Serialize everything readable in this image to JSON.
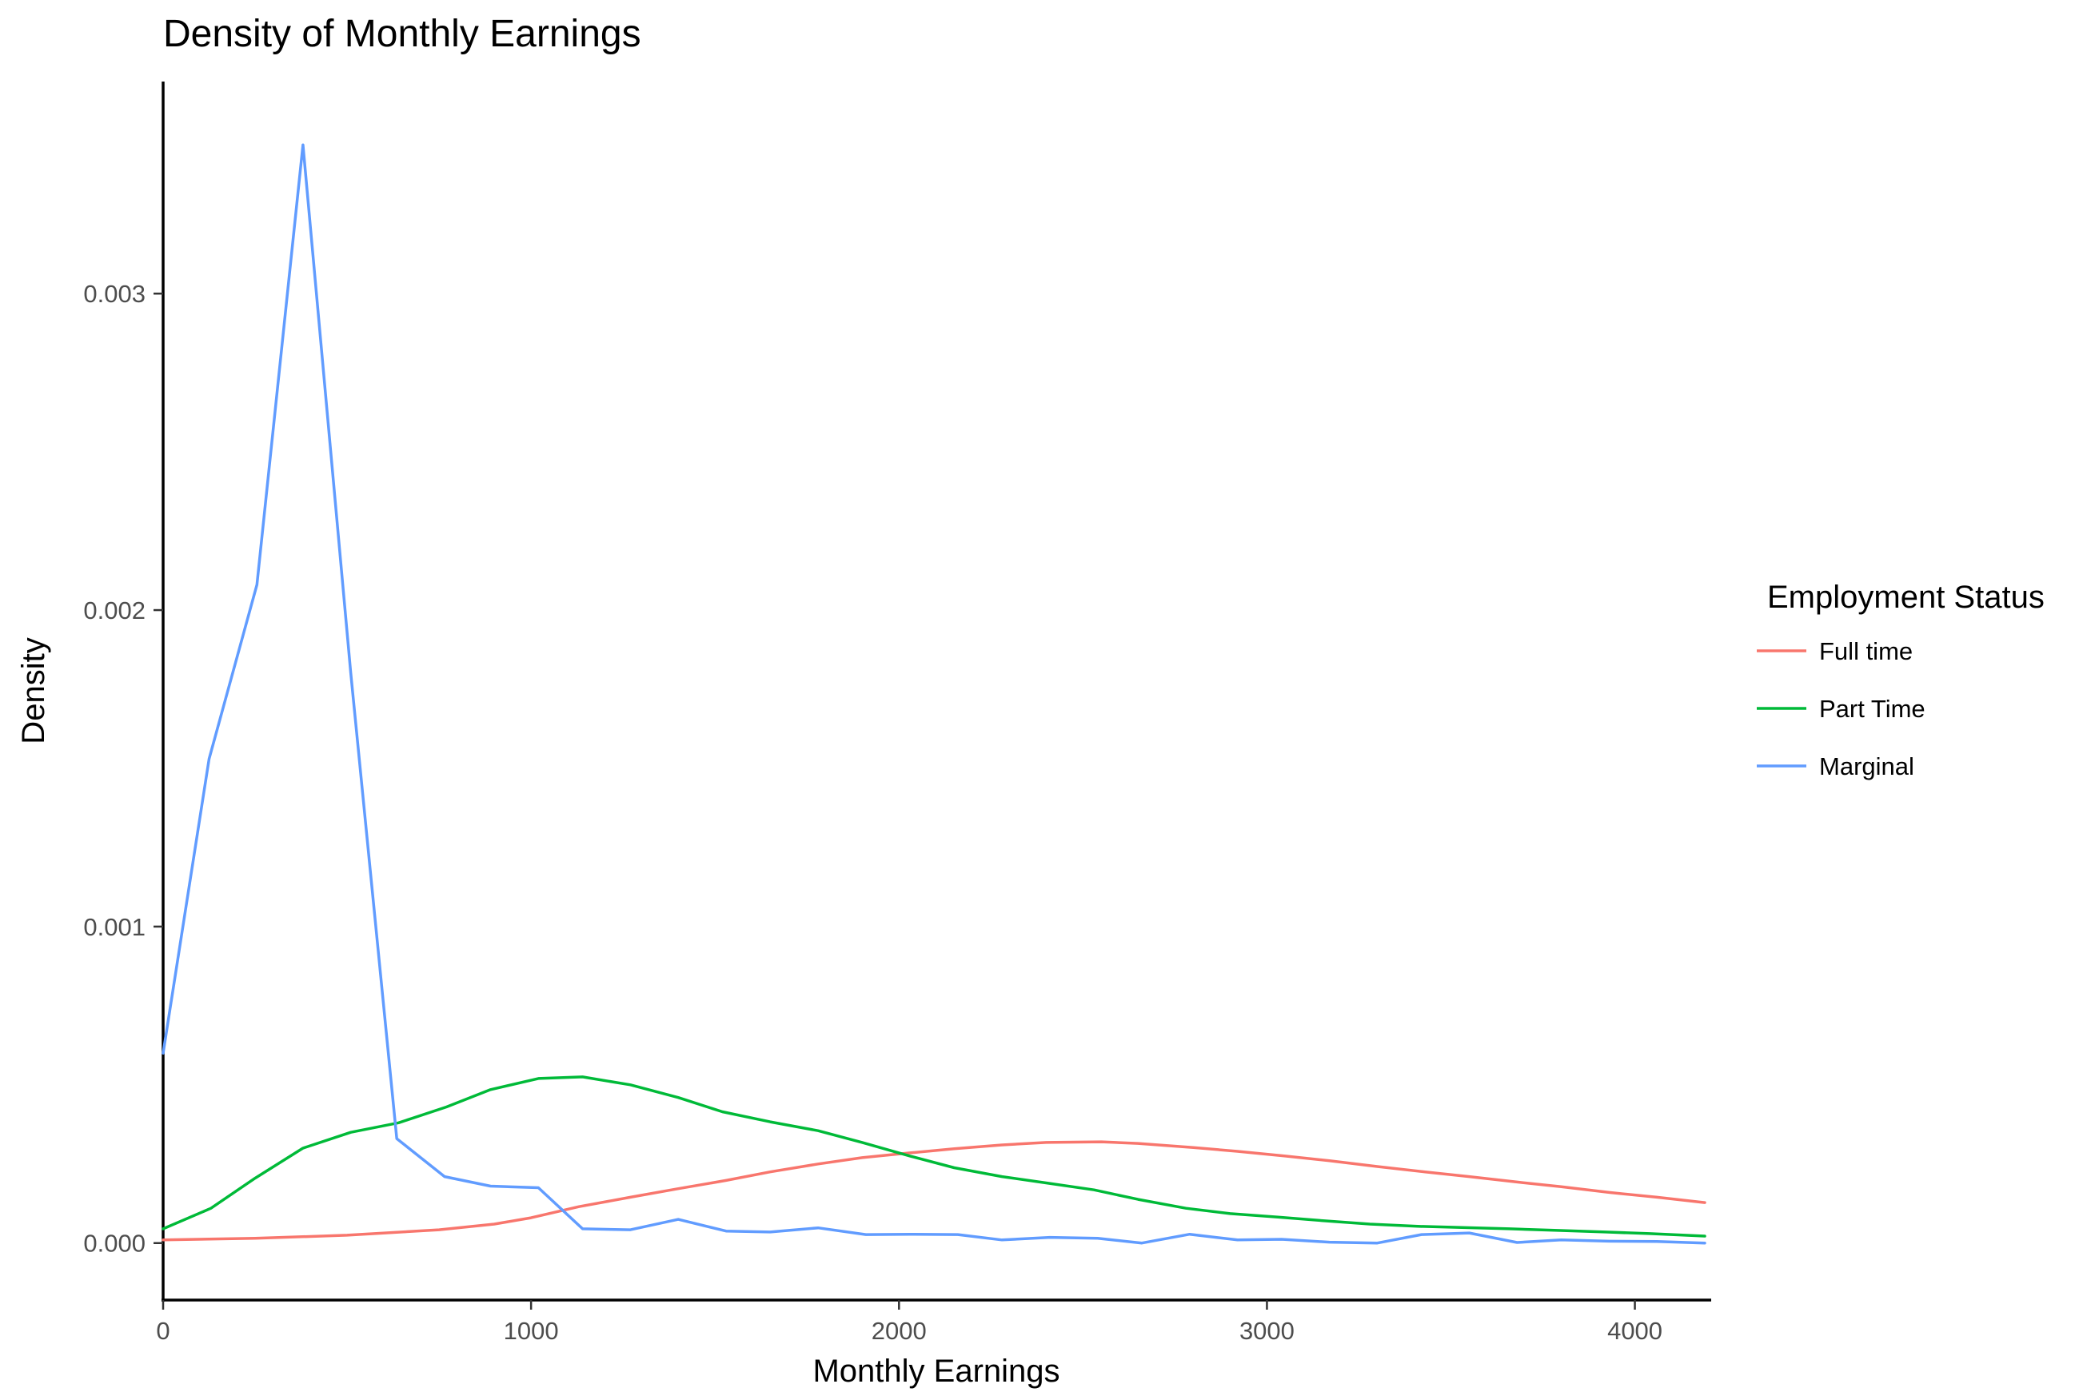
{
  "chart_data": {
    "type": "line",
    "title": "Density of Monthly Earnings",
    "xlabel": "Monthly Earnings",
    "ylabel": "Density",
    "xlim": [
      0,
      4190
    ],
    "ylim": [
      -0.00018,
      0.00367
    ],
    "x_ticks": [
      {
        "value": 0,
        "label": "0"
      },
      {
        "value": 1000,
        "label": "1000"
      },
      {
        "value": 2000,
        "label": "2000"
      },
      {
        "value": 3000,
        "label": "3000"
      },
      {
        "value": 4000,
        "label": "4000"
      }
    ],
    "y_ticks": [
      {
        "value": 0,
        "label": "0.000"
      },
      {
        "value": 0.001,
        "label": "0.001"
      },
      {
        "value": 0.002,
        "label": "0.002"
      },
      {
        "value": 0.003,
        "label": "0.003"
      }
    ],
    "grid": false,
    "legend": {
      "title": "Employment Status",
      "placement": "right"
    },
    "series": [
      {
        "name": "Full time",
        "color": "#F8766D",
        "points": [
          [
            0,
            1e-05
          ],
          [
            250,
            1.5e-05
          ],
          [
            500,
            2.5e-05
          ],
          [
            750,
            4.2e-05
          ],
          [
            900,
            6e-05
          ],
          [
            1000,
            8e-05
          ],
          [
            1130,
            0.000115
          ],
          [
            1270,
            0.000145
          ],
          [
            1400,
            0.000172
          ],
          [
            1530,
            0.000198
          ],
          [
            1650,
            0.000225
          ],
          [
            1780,
            0.00025
          ],
          [
            1900,
            0.00027
          ],
          [
            2030,
            0.000285
          ],
          [
            2150,
            0.000298
          ],
          [
            2280,
            0.00031
          ],
          [
            2400,
            0.000318
          ],
          [
            2550,
            0.00032
          ],
          [
            2650,
            0.000315
          ],
          [
            2800,
            0.000302
          ],
          [
            2920,
            0.00029
          ],
          [
            3050,
            0.000275
          ],
          [
            3170,
            0.00026
          ],
          [
            3300,
            0.000242
          ],
          [
            3430,
            0.000225
          ],
          [
            3550,
            0.00021
          ],
          [
            3680,
            0.000193
          ],
          [
            3800,
            0.000178
          ],
          [
            3930,
            0.00016
          ],
          [
            4060,
            0.000145
          ],
          [
            4190,
            0.000128
          ]
        ]
      },
      {
        "name": "Part Time",
        "color": "#00BA38",
        "points": [
          [
            0,
            4.5e-05
          ],
          [
            130,
            0.00011
          ],
          [
            250,
            0.000205
          ],
          [
            380,
            0.0003
          ],
          [
            510,
            0.00035
          ],
          [
            640,
            0.00038
          ],
          [
            770,
            0.00043
          ],
          [
            890,
            0.000485
          ],
          [
            1020,
            0.00052
          ],
          [
            1140,
            0.000525
          ],
          [
            1270,
            0.0005
          ],
          [
            1400,
            0.00046
          ],
          [
            1520,
            0.000415
          ],
          [
            1650,
            0.000383
          ],
          [
            1780,
            0.000355
          ],
          [
            1900,
            0.000318
          ],
          [
            2030,
            0.000275
          ],
          [
            2150,
            0.000238
          ],
          [
            2280,
            0.00021
          ],
          [
            2400,
            0.00019
          ],
          [
            2530,
            0.000168
          ],
          [
            2650,
            0.000138
          ],
          [
            2780,
            0.00011
          ],
          [
            2900,
            9.3e-05
          ],
          [
            3030,
            8.2e-05
          ],
          [
            3160,
            7e-05
          ],
          [
            3280,
            6e-05
          ],
          [
            3410,
            5.3e-05
          ],
          [
            3540,
            4.9e-05
          ],
          [
            3660,
            4.5e-05
          ],
          [
            3790,
            4e-05
          ],
          [
            3920,
            3.5e-05
          ],
          [
            4040,
            3e-05
          ],
          [
            4190,
            2.2e-05
          ]
        ]
      },
      {
        "name": "Marginal",
        "color": "#619CFF",
        "points": [
          [
            0,
            0.0006
          ],
          [
            125,
            0.00153
          ],
          [
            255,
            0.00208
          ],
          [
            380,
            0.00347
          ],
          [
            510,
            0.0018
          ],
          [
            635,
            0.00033
          ],
          [
            765,
            0.00021
          ],
          [
            890,
            0.00018
          ],
          [
            1020,
            0.000175
          ],
          [
            1140,
            4.5e-05
          ],
          [
            1270,
            4.2e-05
          ],
          [
            1400,
            7.5e-05
          ],
          [
            1530,
            3.8e-05
          ],
          [
            1650,
            3.5e-05
          ],
          [
            1780,
            4.8e-05
          ],
          [
            1910,
            2.7e-05
          ],
          [
            2030,
            2.8e-05
          ],
          [
            2160,
            2.7e-05
          ],
          [
            2280,
            1e-05
          ],
          [
            2410,
            1.8e-05
          ],
          [
            2540,
            1.5e-05
          ],
          [
            2660,
            0.0
          ],
          [
            2790,
            2.8e-05
          ],
          [
            2920,
            1e-05
          ],
          [
            3040,
            1.2e-05
          ],
          [
            3170,
            3e-06
          ],
          [
            3300,
            0.0
          ],
          [
            3420,
            2.7e-05
          ],
          [
            3550,
            3.2e-05
          ],
          [
            3680,
            2e-06
          ],
          [
            3800,
            1e-05
          ],
          [
            3930,
            6e-06
          ],
          [
            4060,
            5e-06
          ],
          [
            4190,
            0.0
          ]
        ]
      }
    ]
  }
}
